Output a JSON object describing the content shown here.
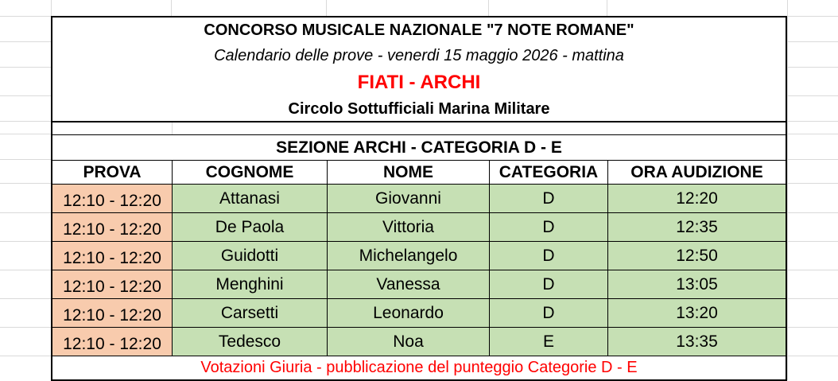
{
  "header": {
    "title": "CONCORSO MUSICALE NAZIONALE \"7 NOTE ROMANE\"",
    "subtitle": "Calendario delle prove - venerdi 15 maggio 2026 - mattina",
    "group": "FIATI - ARCHI",
    "venue": "Circolo Sottufficiali Marina Militare"
  },
  "section": "SEZIONE ARCHI - CATEGORIA D - E",
  "columns": [
    "PROVA",
    "COGNOME",
    "NOME",
    "CATEGORIA",
    "ORA AUDIZIONE"
  ],
  "rows": [
    [
      "12:10 - 12:20",
      "Attanasi",
      "Giovanni",
      "D",
      "12:20"
    ],
    [
      "12:10 - 12:20",
      "De Paola",
      "Vittoria",
      "D",
      "12:35"
    ],
    [
      "12:10 - 12:20",
      "Guidotti",
      "Michelangelo",
      "D",
      "12:50"
    ],
    [
      "12:10 - 12:20",
      "Menghini",
      "Vanessa",
      "D",
      "13:05"
    ],
    [
      "12:10 - 12:20",
      "Carsetti",
      "Leonardo",
      "D",
      "13:20"
    ],
    [
      "12:10 - 12:20",
      "Tedesco",
      "Noa",
      "E",
      "13:35"
    ]
  ],
  "footer": "Votazioni Giuria - pubblicazione del punteggio Categorie D - E",
  "colors": {
    "prova_fill": "#f8cbad",
    "data_fill": "#c6e0b4",
    "accent_red": "#ff0000"
  }
}
